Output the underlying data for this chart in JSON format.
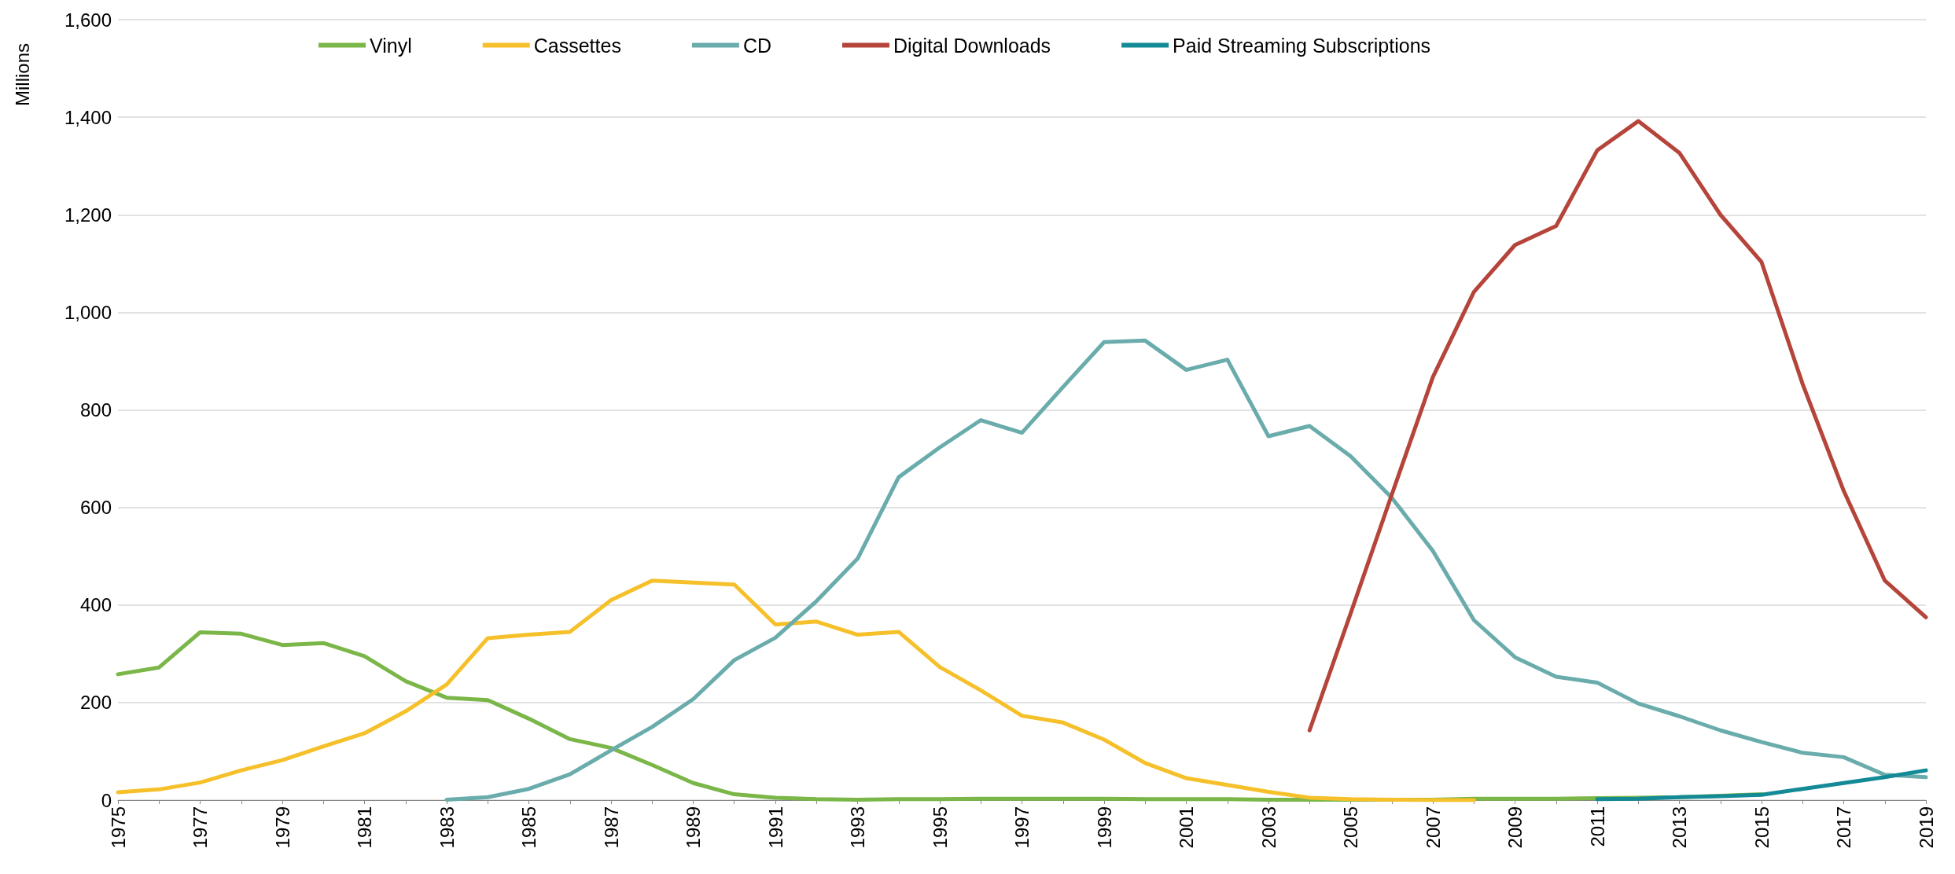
{
  "chart_data": {
    "type": "line",
    "ylabel": "Millions",
    "categories": [
      "1975",
      null,
      "1977",
      null,
      "1979",
      null,
      "1981",
      null,
      "1983",
      null,
      "1985",
      null,
      "1987",
      null,
      "1989",
      null,
      "1991",
      null,
      "1993",
      null,
      "1995",
      null,
      "1997",
      null,
      "1999",
      null,
      "2001",
      null,
      "2003",
      null,
      "2005",
      null,
      "2007",
      null,
      "2009",
      null,
      "2011",
      null,
      "2013",
      null,
      "2015",
      null,
      "2017",
      null,
      "2019"
    ],
    "series": [
      {
        "name": "Vinyl",
        "color": "#7ab648",
        "values": [
          258,
          272,
          344,
          341,
          318,
          322,
          295,
          244,
          210,
          205,
          167,
          125,
          107,
          72,
          35,
          12,
          5,
          2,
          1,
          2,
          2,
          3,
          3,
          3,
          3,
          2,
          2,
          2,
          1,
          1,
          1,
          1,
          1,
          3,
          3,
          3,
          4,
          5,
          6,
          9,
          12,
          null,
          null,
          null,
          null
        ]
      },
      {
        "name": "Cassettes",
        "color": "#f5c02a",
        "values": [
          16,
          22,
          36,
          61,
          82,
          110,
          137,
          182,
          237,
          332,
          339,
          345,
          410,
          450,
          446,
          442,
          360,
          366,
          339,
          345,
          273,
          225,
          173,
          159,
          124,
          76,
          45,
          31,
          17,
          5,
          2,
          1,
          0,
          0,
          null,
          null,
          null,
          null,
          null,
          null,
          null,
          null,
          null,
          null,
          null
        ]
      },
      {
        "name": "CD",
        "color": "#6aacac",
        "values": [
          null,
          null,
          null,
          null,
          null,
          null,
          null,
          null,
          1,
          6,
          23,
          53,
          102,
          150,
          207,
          287,
          333,
          408,
          495,
          662,
          723,
          779,
          753,
          847,
          939,
          942,
          882,
          903,
          746,
          767,
          705,
          620,
          511,
          369,
          293,
          253,
          241,
          198,
          172,
          143,
          119,
          97,
          88,
          52,
          47
        ]
      },
      {
        "name": "Digital Downloads",
        "color": "#b5443a",
        "values": [
          null,
          null,
          null,
          null,
          null,
          null,
          null,
          null,
          null,
          null,
          null,
          null,
          null,
          null,
          null,
          null,
          null,
          null,
          null,
          null,
          null,
          null,
          null,
          null,
          null,
          null,
          null,
          null,
          null,
          143,
          383,
          626,
          867,
          1042,
          1138,
          1177,
          1332,
          1392,
          1327,
          1200,
          1103,
          853,
          634,
          450,
          375
        ]
      },
      {
        "name": "Paid Streaming Subscriptions",
        "color": "#138a96",
        "values": [
          null,
          null,
          null,
          null,
          null,
          null,
          null,
          null,
          null,
          null,
          null,
          null,
          null,
          null,
          null,
          null,
          null,
          null,
          null,
          null,
          null,
          null,
          null,
          null,
          null,
          null,
          null,
          null,
          null,
          null,
          null,
          null,
          null,
          null,
          null,
          null,
          2,
          3,
          6,
          8,
          11,
          23,
          35,
          47,
          61
        ]
      }
    ],
    "ylim": [
      0,
      1600
    ],
    "yticks": [
      0,
      200,
      400,
      600,
      800,
      {
        "value": 1000,
        "label": "1,000"
      },
      {
        "value": 1200,
        "label": "1,200"
      },
      {
        "value": 1400,
        "label": "1,400"
      },
      {
        "value": 1600,
        "label": "1,600"
      }
    ],
    "grid": "y",
    "legend": "top",
    "marker": "none",
    "line_style": "solid"
  }
}
